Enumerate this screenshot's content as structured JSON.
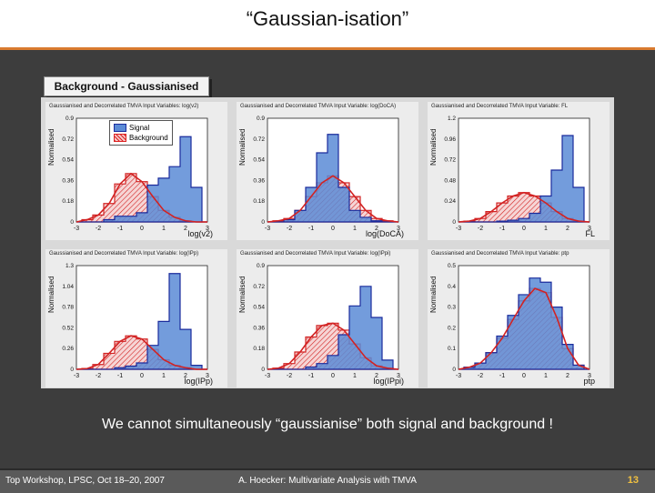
{
  "slide": {
    "title": "“Gaussian-isation”",
    "caption": "Background - Gaussianised",
    "conclusion": "We cannot simultaneously “gaussianise” both signal and background !",
    "footer_left": "Top Workshop, LPSC, Oct 18–20, 2007",
    "footer_center": "A. Hoecker: Multivariate Analysis with TMVA",
    "page_number": "13"
  },
  "legend": {
    "signal": "Signal",
    "background": "Background"
  },
  "colors": {
    "signal_fill": "#5b8bd6",
    "signal_line": "#1a2b9c",
    "background": "#d22222",
    "accent": "#d97b2f"
  },
  "chart_data": [
    {
      "type": "area",
      "title": "Gaussianised and Decorrelated TMVA Input Variables: log(v2)",
      "xlabel": "log(v2)",
      "ylabel": "Normalised",
      "x": [
        -3,
        -2.5,
        -2,
        -1.5,
        -1,
        -0.5,
        0,
        0.5,
        1,
        1.5,
        2,
        2.5,
        3
      ],
      "ylim": [
        0,
        0.9
      ],
      "series": [
        {
          "name": "Signal",
          "values": [
            0,
            0,
            0,
            0.02,
            0.05,
            0.05,
            0.08,
            0.32,
            0.38,
            0.48,
            0.74,
            0.3,
            0
          ]
        },
        {
          "name": "Background",
          "values": [
            0,
            0.02,
            0.06,
            0.16,
            0.33,
            0.42,
            0.35,
            0.22,
            0.1,
            0.04,
            0.01,
            0,
            0
          ]
        }
      ]
    },
    {
      "type": "area",
      "title": "Gaussianised and Decorrelated TMVA Input Variable: log(DoCA)",
      "xlabel": "log(DoCA)",
      "ylabel": "Normalised",
      "x": [
        -3,
        -2.5,
        -2,
        -1.5,
        -1,
        -0.5,
        0,
        0.5,
        1,
        1.5,
        2,
        2.5,
        3
      ],
      "ylim": [
        0,
        0.9
      ],
      "series": [
        {
          "name": "",
          "values": [
            0,
            0,
            0.02,
            0.1,
            0.3,
            0.6,
            0.76,
            0.3,
            0.1,
            0.04,
            0.01,
            0,
            0
          ]
        },
        {
          "name": "",
          "values": [
            0,
            0.01,
            0.03,
            0.1,
            0.22,
            0.34,
            0.4,
            0.34,
            0.22,
            0.1,
            0.03,
            0.01,
            0
          ]
        }
      ]
    },
    {
      "type": "area",
      "title": "Gaussianised and Decorrelated TMVA Input Variable: FL",
      "xlabel": "FL",
      "ylabel": "Normalised",
      "x": [
        -3,
        -2.5,
        -2,
        -1.5,
        -1,
        -0.5,
        0,
        0.5,
        1,
        1.5,
        2,
        2.5,
        3
      ],
      "ylim": [
        0,
        1.2
      ],
      "series": [
        {
          "name": "",
          "values": [
            0,
            0,
            0,
            0,
            0.01,
            0.02,
            0.04,
            0.1,
            0.3,
            0.6,
            1.0,
            0.4,
            0
          ]
        },
        {
          "name": "",
          "values": [
            0,
            0.01,
            0.04,
            0.12,
            0.22,
            0.3,
            0.34,
            0.3,
            0.22,
            0.12,
            0.04,
            0.01,
            0
          ]
        }
      ]
    },
    {
      "type": "area",
      "title": "Gaussianised and Decorrelated TMVA Input Variable: log(IPp)",
      "xlabel": "log(IPp)",
      "ylabel": "Normalised",
      "x": [
        -3,
        -2.5,
        -2,
        -1.5,
        -1,
        -0.5,
        0,
        0.5,
        1,
        1.5,
        2,
        2.5,
        3
      ],
      "ylim": [
        0,
        1.3
      ],
      "series": [
        {
          "name": "",
          "values": [
            0,
            0,
            0,
            0,
            0.02,
            0.04,
            0.08,
            0.3,
            0.6,
            1.2,
            0.5,
            0.05,
            0
          ]
        },
        {
          "name": "",
          "values": [
            0,
            0.01,
            0.06,
            0.2,
            0.35,
            0.42,
            0.38,
            0.25,
            0.12,
            0.05,
            0.02,
            0,
            0
          ]
        }
      ]
    },
    {
      "type": "area",
      "title": "Gaussianised and Decorrelated TMVA Input Variable: log(IPpi)",
      "xlabel": "log(IPpi)",
      "ylabel": "Normalised",
      "x": [
        -3,
        -2.5,
        -2,
        -1.5,
        -1,
        -0.5,
        0,
        0.5,
        1,
        1.5,
        2,
        2.5,
        3
      ],
      "ylim": [
        0,
        0.9
      ],
      "series": [
        {
          "name": "",
          "values": [
            0,
            0,
            0,
            0,
            0.02,
            0.05,
            0.12,
            0.3,
            0.55,
            0.72,
            0.45,
            0.08,
            0
          ]
        },
        {
          "name": "",
          "values": [
            0,
            0.01,
            0.05,
            0.15,
            0.28,
            0.38,
            0.4,
            0.34,
            0.22,
            0.1,
            0.03,
            0.01,
            0
          ]
        }
      ]
    },
    {
      "type": "area",
      "title": "Gaussianised and Decorrelated TMVA Input Variable: ptp",
      "xlabel": "ptp",
      "ylabel": "Normalised",
      "x": [
        -3,
        -2.5,
        -2,
        -1.5,
        -1,
        -0.5,
        0,
        0.5,
        1,
        1.5,
        2,
        2.5,
        3
      ],
      "ylim": [
        0,
        0.5
      ],
      "series": [
        {
          "name": "",
          "values": [
            0,
            0.01,
            0.03,
            0.08,
            0.16,
            0.26,
            0.36,
            0.44,
            0.42,
            0.3,
            0.12,
            0.02,
            0
          ]
        },
        {
          "name": "",
          "values": [
            0,
            0.01,
            0.03,
            0.08,
            0.15,
            0.24,
            0.33,
            0.39,
            0.37,
            0.25,
            0.1,
            0.02,
            0
          ]
        }
      ]
    }
  ]
}
